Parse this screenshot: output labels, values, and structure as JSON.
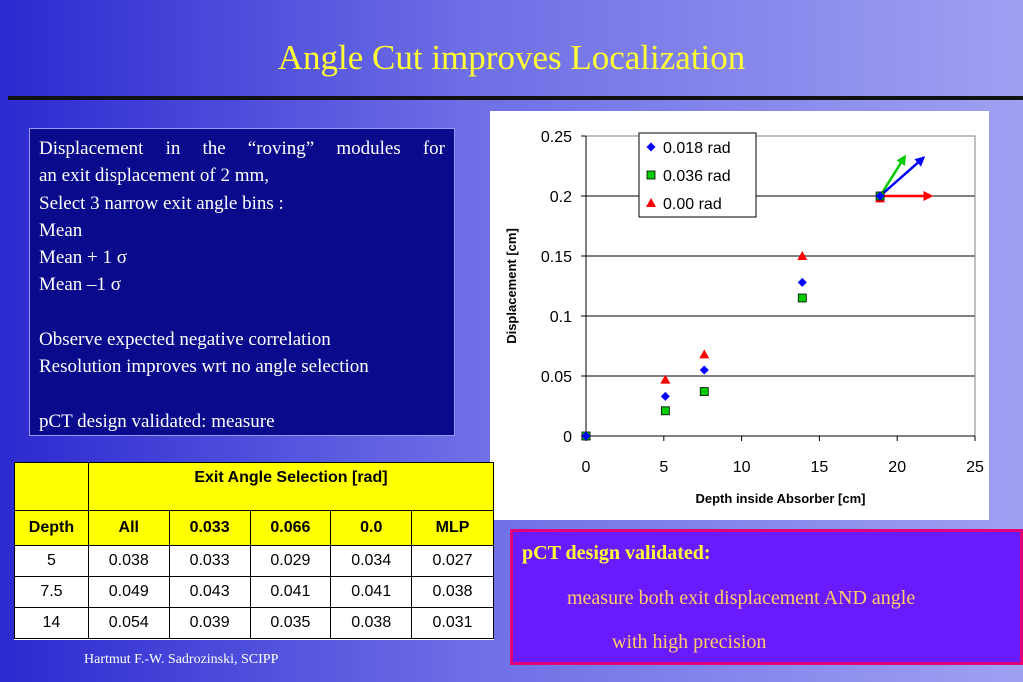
{
  "slide": {
    "title": "Angle Cut improves Localization",
    "footer": "Hartmut F.-W. Sadrozinski, SCIPP"
  },
  "textbox": {
    "lines": [
      "Displacement in the “roving” modules for",
      "an exit displacement of 2 mm,",
      "Select 3 narrow exit angle bins :",
      "Mean",
      "Mean + 1 σ",
      "Mean –1 σ",
      "",
      "Observe expected negative correlation",
      "Resolution improves wrt no angle selection",
      "",
      "pCT design validated: measure"
    ]
  },
  "table": {
    "header_group": "Exit Angle Selection [rad]",
    "depth_label": "Depth",
    "columns": [
      "All",
      "0.033",
      "0.066",
      "0.0",
      "MLP"
    ],
    "rows": [
      {
        "depth": "5",
        "values": [
          "0.038",
          "0.033",
          "0.029",
          "0.034",
          "0.027"
        ]
      },
      {
        "depth": "7.5",
        "values": [
          "0.049",
          "0.043",
          "0.041",
          "0.041",
          "0.038"
        ]
      },
      {
        "depth": "14",
        "values": [
          "0.054",
          "0.039",
          "0.035",
          "0.038",
          "0.031"
        ]
      }
    ]
  },
  "callout": {
    "line1": "pCT design validated:",
    "line2": "measure both exit displacement AND angle",
    "line3": "with high precision"
  },
  "chart_data": {
    "type": "scatter",
    "xlabel": "Depth inside Absorber  [cm]",
    "ylabel": "Displacement [cm]",
    "xlim": [
      0,
      25
    ],
    "ylim": [
      0,
      0.25
    ],
    "xticks": [
      "0",
      "5",
      "10",
      "15",
      "20",
      "25"
    ],
    "yticks": [
      "0",
      "0.05",
      "0.1",
      "0.15",
      "0.2",
      "0.25"
    ],
    "grid": true,
    "legend_position": "top-right",
    "series": [
      {
        "name": "0.018 rad",
        "marker": "diamond",
        "color": "#0000ff",
        "x": [
          0,
          5.1,
          7.6,
          13.9,
          18.9
        ],
        "y": [
          0,
          0.033,
          0.055,
          0.128,
          0.2
        ]
      },
      {
        "name": "0.036 rad",
        "marker": "square",
        "color": "#00cc00",
        "x": [
          0,
          5.1,
          7.6,
          13.9,
          18.9
        ],
        "y": [
          0,
          0.021,
          0.037,
          0.115,
          0.2
        ]
      },
      {
        "name": "0.00 rad",
        "marker": "triangle",
        "color": "#ff0000",
        "x": [
          0,
          5.1,
          7.6,
          13.9,
          18.9
        ],
        "y": [
          0,
          0.047,
          0.068,
          0.15,
          0.198
        ]
      }
    ],
    "arrows": [
      {
        "color": "#00cc00",
        "from": [
          18.9,
          0.2
        ],
        "to": [
          20.5,
          0.233
        ]
      },
      {
        "color": "#0000ff",
        "from": [
          18.9,
          0.2
        ],
        "to": [
          21.7,
          0.232
        ]
      },
      {
        "color": "#ff0000",
        "from": [
          18.9,
          0.2
        ],
        "to": [
          22.2,
          0.2
        ]
      }
    ]
  }
}
